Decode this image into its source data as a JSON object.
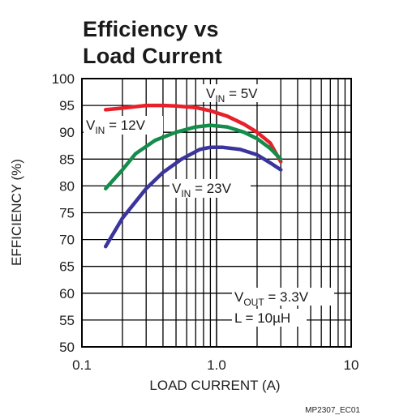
{
  "chart_data": {
    "type": "line",
    "title_lines": [
      "Efficiency vs",
      "Load Current"
    ],
    "xlabel": "LOAD CURRENT (A)",
    "ylabel": "EFFICIENCY (%)",
    "xscale": "log",
    "xlim": [
      0.1,
      10
    ],
    "ylim": [
      50,
      100
    ],
    "x_tick_labels": [
      {
        "value": 0.1,
        "label": "0.1"
      },
      {
        "value": 1,
        "label": "1.0"
      },
      {
        "value": 10,
        "label": "10"
      }
    ],
    "y_ticks": [
      50,
      55,
      60,
      65,
      70,
      75,
      80,
      85,
      90,
      95,
      100
    ],
    "grid": true,
    "series": [
      {
        "name_main": "V",
        "name_sub": "IN",
        "name_tail": " = 5V",
        "color": "#e8202a",
        "x": [
          0.15,
          0.2,
          0.3,
          0.4,
          0.5,
          0.7,
          0.9,
          1.2,
          1.6,
          2.0,
          2.5,
          3.0
        ],
        "y": [
          94.2,
          94.5,
          95.0,
          95.0,
          94.9,
          94.6,
          94.0,
          93.0,
          91.5,
          90.0,
          88.0,
          84.5
        ]
      },
      {
        "name_main": "V",
        "name_sub": "IN",
        "name_tail": " = 12V",
        "color": "#148c4a",
        "x": [
          0.15,
          0.2,
          0.25,
          0.35,
          0.5,
          0.7,
          0.9,
          1.2,
          1.6,
          2.0,
          2.5,
          3.0
        ],
        "y": [
          79.5,
          83.0,
          86.0,
          88.5,
          90.0,
          91.0,
          91.3,
          91.0,
          90.0,
          88.8,
          87.0,
          85.0
        ]
      },
      {
        "name_main": "V",
        "name_sub": "IN",
        "name_tail": " = 23V",
        "color": "#3a349c",
        "x": [
          0.15,
          0.2,
          0.3,
          0.4,
          0.55,
          0.75,
          0.9,
          1.1,
          1.5,
          2.0,
          2.5,
          3.0
        ],
        "y": [
          68.7,
          74.0,
          79.5,
          82.5,
          85.0,
          86.8,
          87.2,
          87.2,
          86.8,
          85.8,
          84.3,
          83.0
        ]
      }
    ],
    "annotations": [
      {
        "main": "V",
        "sub": "OUT",
        "tail": " = 3.3V"
      },
      {
        "main": "L = 10",
        "sub": "",
        "tail": "µH"
      }
    ]
  },
  "footer_code": "MP2307_EC01"
}
